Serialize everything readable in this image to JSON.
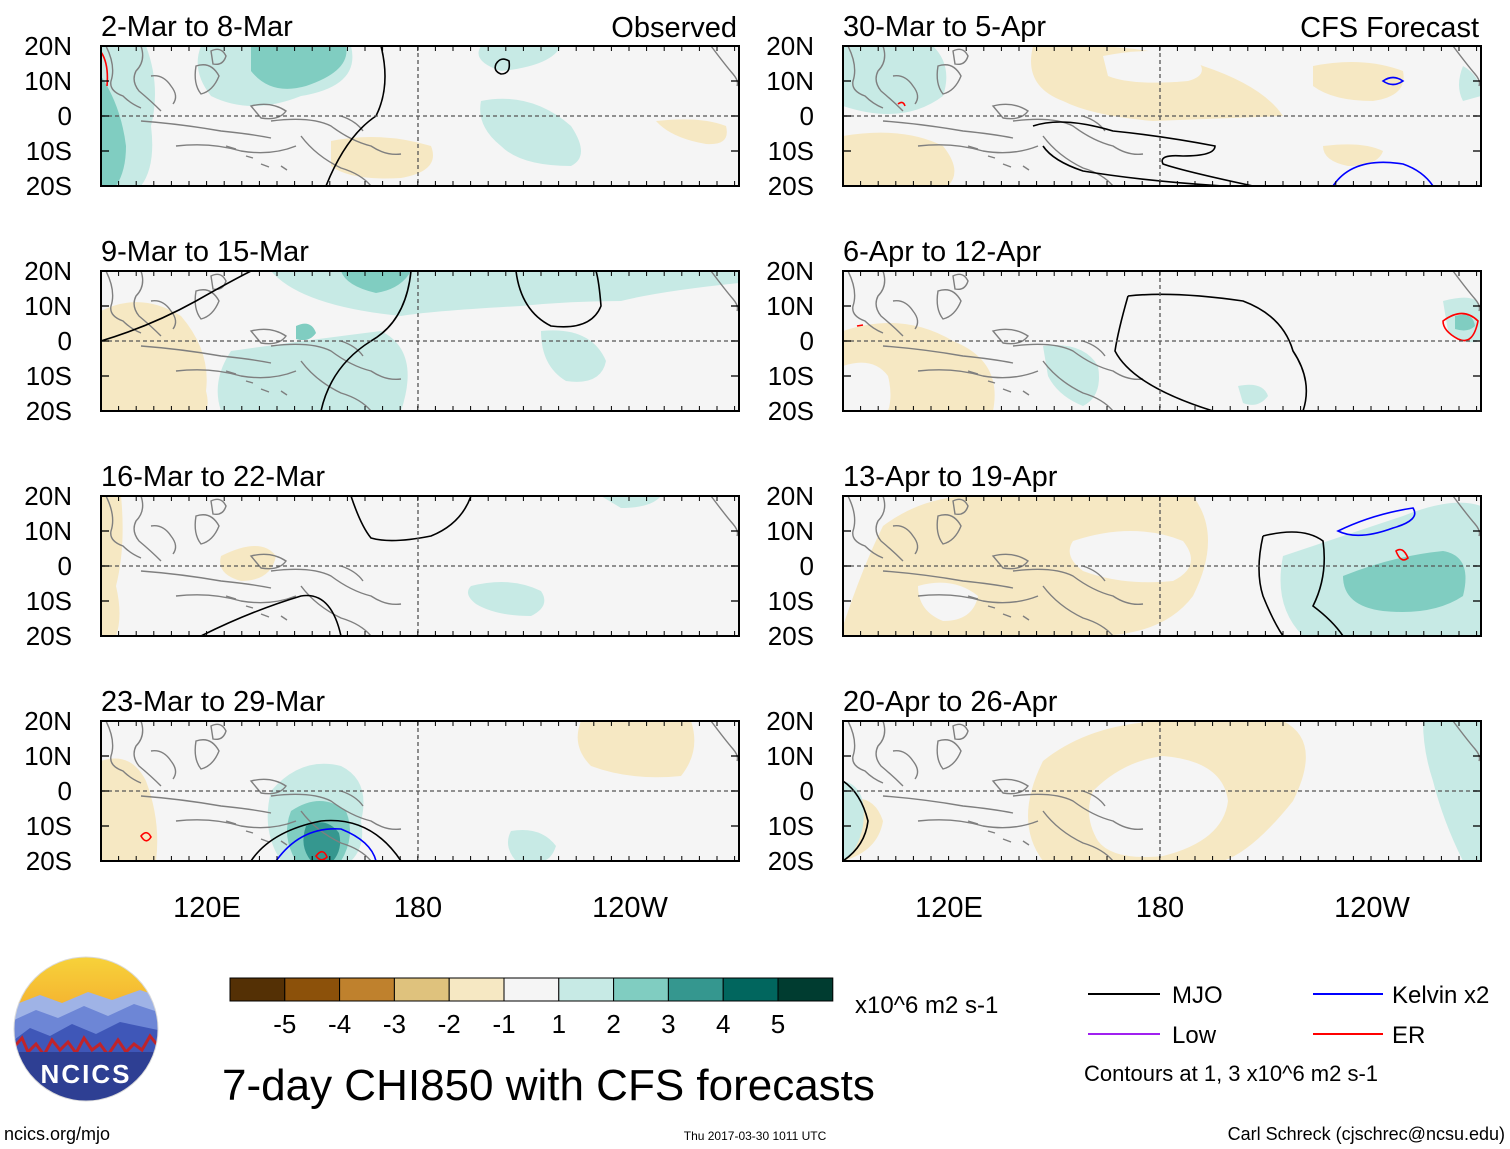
{
  "title": "7-day CHI850 with CFS forecasts",
  "columns": {
    "left_header": "Observed",
    "right_header": "CFS Forecast"
  },
  "panels": [
    {
      "period": "2-Mar to 8-Mar"
    },
    {
      "period": "9-Mar to 15-Mar"
    },
    {
      "period": "16-Mar to 22-Mar"
    },
    {
      "period": "23-Mar to 29-Mar"
    },
    {
      "period": "30-Mar to 5-Apr"
    },
    {
      "period": "6-Apr to 12-Apr"
    },
    {
      "period": "13-Apr to 19-Apr"
    },
    {
      "period": "20-Apr to 26-Apr"
    }
  ],
  "axes": {
    "lat_labels": [
      "20N",
      "10N",
      "0",
      "10S",
      "20S"
    ],
    "lon_labels": [
      "120E",
      "180",
      "120W"
    ]
  },
  "colorbar": {
    "units": "x10^6 m2 s-1",
    "tick_labels": [
      "-5",
      "-4",
      "-3",
      "-2",
      "-1",
      "1",
      "2",
      "3",
      "4",
      "5"
    ],
    "colors": [
      "#543005",
      "#8c510a",
      "#bf812d",
      "#dfc27d",
      "#f6e8c3",
      "#f5f5f5",
      "#c7eae5",
      "#80cdc1",
      "#35978f",
      "#01665e",
      "#003c30"
    ]
  },
  "legend": {
    "items": [
      {
        "label": "MJO",
        "color": "#000000"
      },
      {
        "label": "Kelvin x2",
        "color": "#0000ff"
      },
      {
        "label": "Low",
        "color": "#a020f0"
      },
      {
        "label": "ER",
        "color": "#ff0000"
      }
    ],
    "note": "Contours at 1, 3 x10^6 m2 s-1"
  },
  "logo": {
    "text": "NCICS"
  },
  "footer": {
    "website": "ncics.org/mjo",
    "timestamp": "Thu 2017-03-30 1011 UTC",
    "author": "Carl Schreck (cjschrec@ncsu.edu)"
  }
}
